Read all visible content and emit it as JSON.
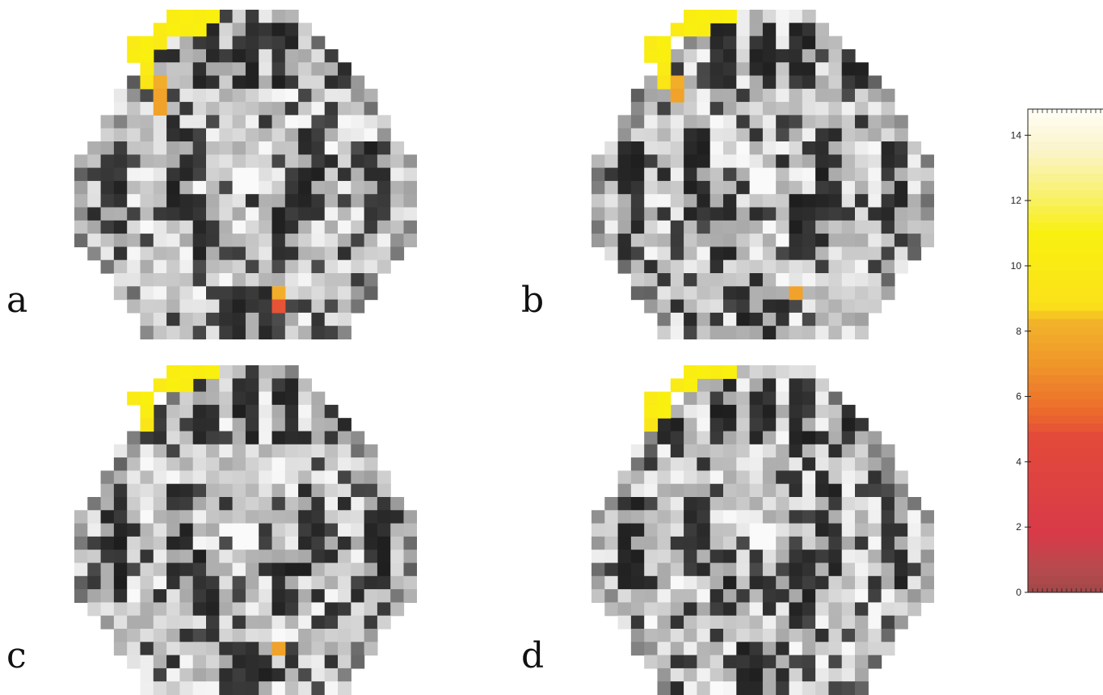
{
  "panels": [
    {
      "label": "a",
      "hotspots": [
        {
          "c": 7,
          "r": 0,
          "v": 10.5
        },
        {
          "c": 8,
          "r": 0,
          "v": 11
        },
        {
          "c": 9,
          "r": 0,
          "v": 10.5
        },
        {
          "c": 10,
          "r": 0,
          "v": 11
        },
        {
          "c": 6,
          "r": 1,
          "v": 10
        },
        {
          "c": 7,
          "r": 1,
          "v": 11
        },
        {
          "c": 8,
          "r": 1,
          "v": 10.5
        },
        {
          "c": 9,
          "r": 1,
          "v": 11
        },
        {
          "c": 4,
          "r": 2,
          "v": 10
        },
        {
          "c": 5,
          "r": 2,
          "v": 11
        },
        {
          "c": 6,
          "r": 2,
          "v": 10
        },
        {
          "c": 4,
          "r": 3,
          "v": 10.5
        },
        {
          "c": 5,
          "r": 3,
          "v": 11
        },
        {
          "c": 5,
          "r": 4,
          "v": 10
        },
        {
          "c": 5,
          "r": 5,
          "v": 9.5
        },
        {
          "c": 6,
          "r": 5,
          "v": 8
        },
        {
          "c": 6,
          "r": 6,
          "v": 7.5
        },
        {
          "c": 6,
          "r": 7,
          "v": 7.5
        },
        {
          "c": 15,
          "r": 21,
          "v": 8
        },
        {
          "c": 15,
          "r": 22,
          "v": 5
        }
      ]
    },
    {
      "label": "b",
      "hotspots": [
        {
          "c": 7,
          "r": 0,
          "v": 10.5
        },
        {
          "c": 8,
          "r": 0,
          "v": 11
        },
        {
          "c": 9,
          "r": 0,
          "v": 10.5
        },
        {
          "c": 10,
          "r": 0,
          "v": 11
        },
        {
          "c": 6,
          "r": 1,
          "v": 10
        },
        {
          "c": 7,
          "r": 1,
          "v": 11
        },
        {
          "c": 8,
          "r": 1,
          "v": 10.5
        },
        {
          "c": 4,
          "r": 2,
          "v": 10
        },
        {
          "c": 5,
          "r": 2,
          "v": 11
        },
        {
          "c": 4,
          "r": 3,
          "v": 10.5
        },
        {
          "c": 5,
          "r": 3,
          "v": 11
        },
        {
          "c": 5,
          "r": 4,
          "v": 10
        },
        {
          "c": 5,
          "r": 5,
          "v": 9.5
        },
        {
          "c": 6,
          "r": 5,
          "v": 8
        },
        {
          "c": 6,
          "r": 6,
          "v": 7.5
        },
        {
          "c": 15,
          "r": 21,
          "v": 7.5
        }
      ]
    },
    {
      "label": "c",
      "hotspots": [
        {
          "c": 7,
          "r": 0,
          "v": 10.5
        },
        {
          "c": 8,
          "r": 0,
          "v": 11
        },
        {
          "c": 9,
          "r": 0,
          "v": 10.5
        },
        {
          "c": 10,
          "r": 0,
          "v": 11
        },
        {
          "c": 6,
          "r": 1,
          "v": 10
        },
        {
          "c": 7,
          "r": 1,
          "v": 11
        },
        {
          "c": 8,
          "r": 1,
          "v": 10.5
        },
        {
          "c": 4,
          "r": 2,
          "v": 10
        },
        {
          "c": 5,
          "r": 2,
          "v": 11
        },
        {
          "c": 5,
          "r": 3,
          "v": 10.5
        },
        {
          "c": 5,
          "r": 4,
          "v": 9.5
        },
        {
          "c": 15,
          "r": 21,
          "v": 7.5
        }
      ]
    },
    {
      "label": "d",
      "hotspots": [
        {
          "c": 7,
          "r": 0,
          "v": 10.5
        },
        {
          "c": 8,
          "r": 0,
          "v": 11
        },
        {
          "c": 9,
          "r": 0,
          "v": 10.5
        },
        {
          "c": 10,
          "r": 0,
          "v": 11
        },
        {
          "c": 6,
          "r": 1,
          "v": 10
        },
        {
          "c": 7,
          "r": 1,
          "v": 11
        },
        {
          "c": 4,
          "r": 2,
          "v": 10
        },
        {
          "c": 5,
          "r": 2,
          "v": 11
        },
        {
          "c": 4,
          "r": 3,
          "v": 10.5
        },
        {
          "c": 5,
          "r": 3,
          "v": 11
        },
        {
          "c": 4,
          "r": 4,
          "v": 9.5
        }
      ]
    }
  ],
  "colorbar": {
    "ticks": [
      "0",
      "2",
      "4",
      "6",
      "8",
      "10",
      "12",
      "14"
    ],
    "min": 0,
    "max": 14.8,
    "stops": [
      {
        "v": 0,
        "color": "#a04848"
      },
      {
        "v": 0.8,
        "color": "#b84a4e"
      },
      {
        "v": 1.8,
        "color": "#d83a48"
      },
      {
        "v": 4.8,
        "color": "#e44a3a"
      },
      {
        "v": 5.5,
        "color": "#ec6a2c"
      },
      {
        "v": 7.0,
        "color": "#f0962a"
      },
      {
        "v": 8.3,
        "color": "#f2b42a"
      },
      {
        "v": 8.8,
        "color": "#fbe21a"
      },
      {
        "v": 11.0,
        "color": "#f9f010"
      },
      {
        "v": 12.0,
        "color": "#f8f060"
      },
      {
        "v": 13.5,
        "color": "#faf4c8"
      },
      {
        "v": 14.8,
        "color": "#fffef6"
      }
    ]
  }
}
